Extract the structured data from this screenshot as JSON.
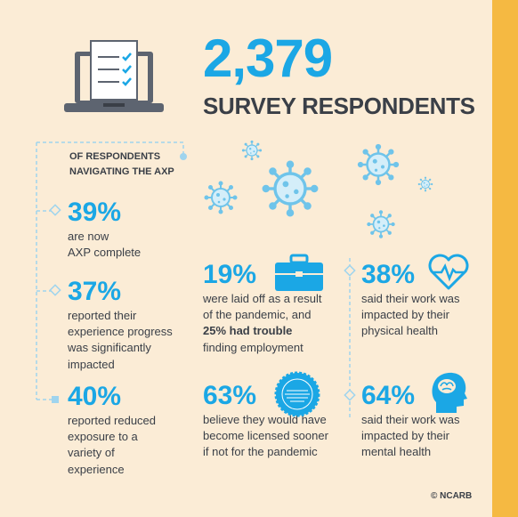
{
  "header": {
    "count": "2,379",
    "subtitle": "SURVEY RESPONDENTS"
  },
  "section": {
    "label_line1": "OF RESPONDENTS",
    "label_line2": "NAVIGATING THE AXP"
  },
  "left_stats": [
    {
      "value": "39%",
      "lines": [
        "are now",
        "AXP complete"
      ]
    },
    {
      "value": "37%",
      "lines": [
        "reported their",
        "experience progress",
        "was significantly",
        "impacted"
      ]
    },
    {
      "value": "40%",
      "lines": [
        "reported reduced",
        "exposure to a",
        "variety of",
        "experience"
      ]
    }
  ],
  "mid_stats": [
    {
      "value": "19%",
      "line1": "were laid off as a result",
      "line2": "of the pandemic, and",
      "line3_bold": "25% had trouble",
      "line4": "finding employment"
    },
    {
      "value": "63%",
      "lines": [
        "believe they would have",
        "become licensed sooner",
        "if not for the pandemic"
      ]
    }
  ],
  "right_stats": [
    {
      "value": "38%",
      "lines": [
        "said their work was",
        "impacted by their",
        "physical health"
      ]
    },
    {
      "value": "64%",
      "lines": [
        "said their work was",
        "impacted by their",
        "mental health"
      ]
    }
  ],
  "footer": {
    "copyright": "© NCARB"
  },
  "icons": {
    "laptop": "laptop-checklist-icon",
    "virus": "virus-icon",
    "briefcase": "briefcase-icon",
    "heart": "heartbeat-icon",
    "seal": "seal-icon",
    "head": "brain-head-icon"
  },
  "colors": {
    "background": "#fbecd6",
    "accent": "#1ba7e5",
    "band": "#f5b942",
    "text": "#3a3f47"
  }
}
